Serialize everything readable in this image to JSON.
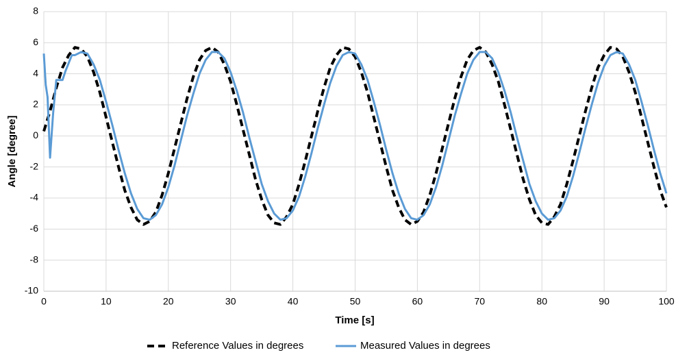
{
  "chart_data": {
    "type": "line",
    "x_label": "Time [s]",
    "y_label": "Angle [degree]",
    "xlim": [
      0,
      100
    ],
    "xticks": [
      0,
      10,
      20,
      30,
      40,
      50,
      60,
      70,
      80,
      90,
      100
    ],
    "ylim": [
      -10,
      8
    ],
    "yticks": [
      -10,
      -8,
      -6,
      -4,
      -2,
      0,
      2,
      4,
      6,
      8
    ],
    "grid": true,
    "legend": "bottom",
    "series": [
      {
        "name": "Reference Values in degrees",
        "color": "#000000",
        "line_style": "dashed",
        "x": [
          0,
          1,
          2,
          3,
          4,
          5,
          6,
          7,
          8,
          9,
          10,
          11,
          12,
          13,
          14,
          15,
          16,
          17,
          18,
          19,
          20,
          21,
          22,
          23,
          24,
          25,
          26,
          27,
          28,
          29,
          30,
          31,
          32,
          33,
          34,
          35,
          36,
          37,
          38,
          39,
          40,
          41,
          42,
          43,
          44,
          45,
          46,
          47,
          48,
          49,
          50,
          51,
          52,
          53,
          54,
          55,
          56,
          57,
          58,
          59,
          60,
          61,
          62,
          63,
          64,
          65,
          66,
          67,
          68,
          69,
          70,
          71,
          72,
          73,
          74,
          75,
          76,
          77,
          78,
          79,
          80,
          81,
          82,
          83,
          84,
          85,
          86,
          87,
          88,
          89,
          90,
          91,
          92,
          93,
          94,
          95,
          96,
          97,
          98,
          99,
          100
        ],
        "values": [
          0.3,
          1.6,
          3.1,
          4.4,
          5.2,
          5.7,
          5.6,
          5.1,
          4.1,
          2.8,
          1.2,
          -0.4,
          -2,
          -3.5,
          -4.6,
          -5.4,
          -5.7,
          -5.5,
          -4.9,
          -3.8,
          -2.4,
          -0.8,
          0.8,
          2.4,
          3.8,
          4.9,
          5.5,
          5.7,
          5.4,
          4.6,
          3.5,
          2,
          0.4,
          -1.2,
          -2.8,
          -4.1,
          -5.1,
          -5.6,
          -5.7,
          -5.2,
          -4.4,
          -3.1,
          -1.6,
          0,
          1.6,
          3.1,
          4.4,
          5.2,
          5.7,
          5.6,
          5.1,
          4.1,
          2.8,
          1.2,
          -0.4,
          -2,
          -3.5,
          -4.6,
          -5.4,
          -5.7,
          -5.5,
          -4.9,
          -3.8,
          -2.4,
          -0.8,
          0.8,
          2.4,
          3.8,
          4.9,
          5.5,
          5.7,
          5.4,
          4.6,
          3.5,
          2,
          0.4,
          -1.2,
          -2.8,
          -4.1,
          -5.1,
          -5.6,
          -5.7,
          -5.2,
          -4.4,
          -3.1,
          -1.6,
          0,
          1.6,
          3.1,
          4.4,
          5.2,
          5.7,
          5.6,
          5.1,
          4.1,
          2.8,
          1.2,
          -0.4,
          -2,
          -3.5,
          -4.6
        ]
      },
      {
        "name": "Measured Values in degrees",
        "color": "#5b9bd5",
        "line_style": "solid",
        "x": [
          0,
          0.3,
          0.6,
          1,
          1.5,
          2,
          2.5,
          3,
          3.5,
          4,
          4.5,
          5,
          6,
          7,
          8,
          9,
          10,
          11,
          12,
          13,
          14,
          15,
          16,
          17,
          18,
          19,
          20,
          21,
          22,
          23,
          24,
          25,
          26,
          27,
          28,
          29,
          30,
          31,
          32,
          33,
          34,
          35,
          36,
          37,
          38,
          39,
          40,
          41,
          42,
          43,
          44,
          45,
          46,
          47,
          48,
          49,
          50,
          51,
          52,
          53,
          54,
          55,
          56,
          57,
          58,
          59,
          60,
          61,
          62,
          63,
          64,
          65,
          66,
          67,
          68,
          69,
          70,
          71,
          72,
          73,
          74,
          75,
          76,
          77,
          78,
          79,
          80,
          81,
          82,
          83,
          84,
          85,
          86,
          87,
          88,
          89,
          90,
          91,
          92,
          93,
          94,
          95,
          96,
          97,
          98,
          99,
          100
        ],
        "values": [
          5.3,
          3.3,
          2.5,
          -1.4,
          1.5,
          3.6,
          3.6,
          3.6,
          4.2,
          4.7,
          5.2,
          5.2,
          5.4,
          5.3,
          4.6,
          3.6,
          2.2,
          0.7,
          -0.9,
          -2.4,
          -3.7,
          -4.7,
          -5.3,
          -5.4,
          -5.1,
          -4.4,
          -3.3,
          -1.9,
          -0.3,
          1.3,
          2.7,
          4,
          4.9,
          5.4,
          5.4,
          5,
          4.1,
          2.9,
          1.5,
          -0.1,
          -1.6,
          -3.1,
          -4.2,
          -5,
          -5.4,
          -5.3,
          -4.8,
          -3.9,
          -2.6,
          -1.1,
          0.5,
          2,
          3.4,
          4.5,
          5.2,
          5.4,
          5.3,
          4.6,
          3.6,
          2.2,
          0.7,
          -0.9,
          -2.4,
          -3.7,
          -4.7,
          -5.3,
          -5.4,
          -5.1,
          -4.4,
          -3.3,
          -1.9,
          -0.3,
          1.3,
          2.7,
          4,
          4.9,
          5.4,
          5.4,
          5,
          4.1,
          2.9,
          1.5,
          -0.1,
          -1.6,
          -3.1,
          -4.2,
          -5,
          -5.4,
          -5.3,
          -4.8,
          -3.9,
          -2.6,
          -1.1,
          0.5,
          2,
          3.4,
          4.5,
          5.2,
          5.4,
          5.3,
          4.6,
          3.6,
          2.2,
          0.7,
          -0.9,
          -2.4,
          -3.7
        ]
      }
    ]
  }
}
